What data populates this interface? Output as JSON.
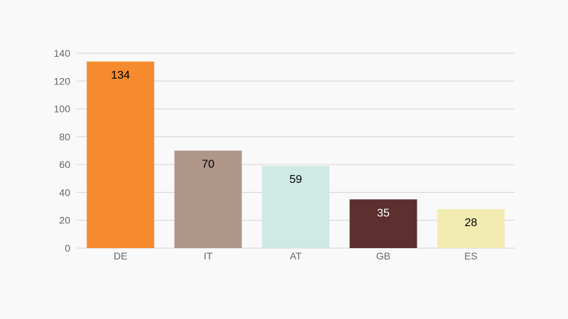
{
  "chart_data": {
    "type": "bar",
    "title": "",
    "xlabel": "",
    "ylabel": "",
    "categories": [
      "DE",
      "IT",
      "AT",
      "GB",
      "ES"
    ],
    "values": [
      134,
      70,
      59,
      35,
      28
    ],
    "colors": [
      "#f58b2e",
      "#b09689",
      "#cfe9e5",
      "#5c302f",
      "#f2ecb2"
    ],
    "label_colors": [
      "#000000",
      "#000000",
      "#000000",
      "#ffffff",
      "#000000"
    ],
    "ylim": [
      0,
      140
    ],
    "yticks": [
      0,
      20,
      40,
      60,
      80,
      100,
      120,
      140
    ],
    "grid": true,
    "legend": "none",
    "background": "#f9f9f9"
  }
}
